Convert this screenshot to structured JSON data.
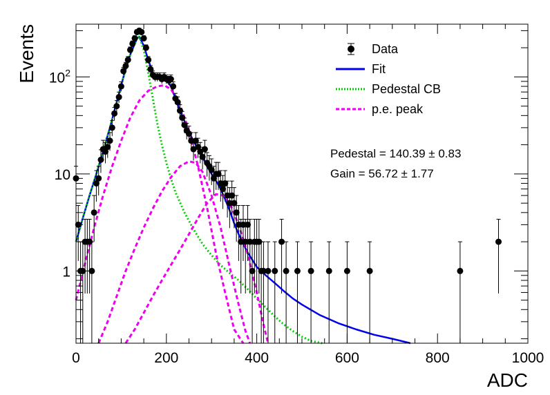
{
  "chart_data": {
    "type": "scatter",
    "title": "",
    "xlabel": "ADC",
    "ylabel": "Events",
    "xlim": [
      0,
      1000
    ],
    "ylim": [
      0.18,
      350
    ],
    "y_scale": "log",
    "x_ticks": [
      "0",
      "200",
      "400",
      "600",
      "800",
      "1000"
    ],
    "y_ticks": [
      {
        "value": 1,
        "label": "1"
      },
      {
        "value": 10,
        "label": "10"
      },
      {
        "value": 100,
        "label": "10^2"
      }
    ],
    "grid": false,
    "legend_position": "top-right",
    "legend": [
      {
        "label": "Data",
        "style": "marker",
        "color": "#000000"
      },
      {
        "label": "Fit",
        "style": "line",
        "color": "#0000ee"
      },
      {
        "label": "Pedestal CB",
        "style": "dotted",
        "color": "#00cc00"
      },
      {
        "label": "p.e. peak",
        "style": "dashed",
        "color": "#ee00ee"
      }
    ],
    "annotations": {
      "pedestal": "Pedestal = 140.39",
      "pedestal_err": "0.83",
      "gain": "Gain = 56.72",
      "gain_err": "1.77"
    },
    "data_points": [
      {
        "x": 0,
        "y": 9
      },
      {
        "x": 5,
        "y": 3
      },
      {
        "x": 10,
        "y": 1
      },
      {
        "x": 15,
        "y": 1
      },
      {
        "x": 20,
        "y": 2
      },
      {
        "x": 25,
        "y": 2
      },
      {
        "x": 30,
        "y": 2
      },
      {
        "x": 35,
        "y": 1
      },
      {
        "x": 40,
        "y": 4
      },
      {
        "x": 45,
        "y": 8
      },
      {
        "x": 50,
        "y": 9
      },
      {
        "x": 55,
        "y": 14
      },
      {
        "x": 60,
        "y": 18
      },
      {
        "x": 65,
        "y": 17
      },
      {
        "x": 70,
        "y": 19
      },
      {
        "x": 75,
        "y": 22
      },
      {
        "x": 80,
        "y": 30
      },
      {
        "x": 85,
        "y": 42
      },
      {
        "x": 90,
        "y": 50
      },
      {
        "x": 95,
        "y": 62
      },
      {
        "x": 100,
        "y": 80
      },
      {
        "x": 105,
        "y": 115
      },
      {
        "x": 110,
        "y": 130
      },
      {
        "x": 115,
        "y": 150
      },
      {
        "x": 120,
        "y": 190
      },
      {
        "x": 125,
        "y": 220
      },
      {
        "x": 130,
        "y": 250
      },
      {
        "x": 135,
        "y": 290
      },
      {
        "x": 140,
        "y": 300
      },
      {
        "x": 145,
        "y": 290
      },
      {
        "x": 150,
        "y": 250
      },
      {
        "x": 155,
        "y": 200
      },
      {
        "x": 160,
        "y": 150
      },
      {
        "x": 165,
        "y": 120
      },
      {
        "x": 170,
        "y": 105
      },
      {
        "x": 175,
        "y": 100
      },
      {
        "x": 180,
        "y": 100
      },
      {
        "x": 185,
        "y": 100
      },
      {
        "x": 190,
        "y": 95
      },
      {
        "x": 195,
        "y": 100
      },
      {
        "x": 200,
        "y": 95
      },
      {
        "x": 205,
        "y": 92
      },
      {
        "x": 210,
        "y": 95
      },
      {
        "x": 215,
        "y": 80
      },
      {
        "x": 220,
        "y": 60
      },
      {
        "x": 225,
        "y": 55
      },
      {
        "x": 230,
        "y": 45
      },
      {
        "x": 235,
        "y": 38
      },
      {
        "x": 240,
        "y": 32
      },
      {
        "x": 245,
        "y": 28
      },
      {
        "x": 250,
        "y": 26
      },
      {
        "x": 255,
        "y": 22
      },
      {
        "x": 260,
        "y": 18
      },
      {
        "x": 265,
        "y": 22
      },
      {
        "x": 270,
        "y": 19
      },
      {
        "x": 275,
        "y": 17
      },
      {
        "x": 280,
        "y": 15
      },
      {
        "x": 285,
        "y": 18
      },
      {
        "x": 290,
        "y": 13
      },
      {
        "x": 295,
        "y": 12
      },
      {
        "x": 300,
        "y": 11
      },
      {
        "x": 305,
        "y": 9
      },
      {
        "x": 310,
        "y": 10
      },
      {
        "x": 315,
        "y": 10
      },
      {
        "x": 320,
        "y": 8
      },
      {
        "x": 325,
        "y": 7
      },
      {
        "x": 330,
        "y": 8
      },
      {
        "x": 335,
        "y": 6
      },
      {
        "x": 340,
        "y": 5
      },
      {
        "x": 345,
        "y": 6
      },
      {
        "x": 350,
        "y": 5
      },
      {
        "x": 355,
        "y": 4
      },
      {
        "x": 360,
        "y": 3
      },
      {
        "x": 365,
        "y": 2
      },
      {
        "x": 370,
        "y": 3
      },
      {
        "x": 375,
        "y": 2
      },
      {
        "x": 380,
        "y": 3
      },
      {
        "x": 385,
        "y": 2
      },
      {
        "x": 390,
        "y": 1
      },
      {
        "x": 395,
        "y": 2
      },
      {
        "x": 400,
        "y": 2
      },
      {
        "x": 405,
        "y": 2
      },
      {
        "x": 410,
        "y": 1
      },
      {
        "x": 415,
        "y": 1
      },
      {
        "x": 425,
        "y": 1
      },
      {
        "x": 440,
        "y": 1
      },
      {
        "x": 455,
        "y": 2
      },
      {
        "x": 465,
        "y": 1
      },
      {
        "x": 490,
        "y": 1
      },
      {
        "x": 520,
        "y": 1
      },
      {
        "x": 560,
        "y": 1
      },
      {
        "x": 600,
        "y": 1
      },
      {
        "x": 650,
        "y": 1
      },
      {
        "x": 850,
        "y": 1
      },
      {
        "x": 935,
        "y": 2
      }
    ],
    "series": [
      {
        "name": "Fit",
        "color": "#0000ee",
        "dash": "none",
        "x": [
          0,
          15,
          30,
          45,
          60,
          75,
          90,
          105,
          120,
          135,
          140,
          150,
          160,
          170,
          180,
          190,
          200,
          210,
          220,
          230,
          240,
          250,
          260,
          270,
          280,
          290,
          300,
          310,
          320,
          330,
          340,
          350,
          360,
          370,
          380,
          400,
          420,
          440,
          460,
          480,
          500,
          540,
          580,
          620,
          660,
          700,
          740
        ],
        "y": [
          2,
          3.5,
          6,
          10,
          17,
          30,
          55,
          100,
          170,
          250,
          260,
          210,
          150,
          110,
          100,
          97,
          94,
          80,
          60,
          45,
          35,
          27,
          22,
          18,
          15,
          12,
          10,
          8.5,
          7,
          5.5,
          4.2,
          3.1,
          2.4,
          1.9,
          1.55,
          1.1,
          0.9,
          0.75,
          0.62,
          0.52,
          0.45,
          0.35,
          0.29,
          0.25,
          0.22,
          0.2,
          0.18
        ]
      },
      {
        "name": "Pedestal CB",
        "color": "#00cc00",
        "dash": "2,3",
        "x": [
          0,
          15,
          30,
          45,
          60,
          75,
          90,
          105,
          120,
          135,
          140,
          150,
          160,
          170,
          180,
          190,
          200,
          210,
          220,
          240,
          260,
          280,
          300,
          320,
          340,
          360,
          380,
          400,
          420,
          440,
          460,
          480,
          500,
          520,
          545
        ],
        "y": [
          2,
          3.5,
          6,
          10,
          17,
          30,
          55,
          100,
          170,
          250,
          260,
          190,
          110,
          60,
          33,
          20,
          13,
          9,
          6.5,
          4,
          2.7,
          1.9,
          1.45,
          1.15,
          0.95,
          0.8,
          0.65,
          0.52,
          0.42,
          0.34,
          0.28,
          0.24,
          0.21,
          0.19,
          0.18
        ]
      },
      {
        "name": "p.e. peak 1",
        "color": "#ee00ee",
        "dash": "6,4",
        "x": [
          0,
          20,
          40,
          60,
          80,
          100,
          120,
          140,
          160,
          180,
          195,
          210,
          230,
          250,
          270,
          290,
          310,
          330,
          350,
          370
        ],
        "y": [
          0.5,
          1.2,
          2.8,
          6,
          12,
          22,
          38,
          57,
          72,
          80,
          82,
          75,
          52,
          28,
          12,
          4.5,
          1.5,
          0.6,
          0.25,
          0.18
        ]
      },
      {
        "name": "p.e. peak 2",
        "color": "#ee00ee",
        "dash": "6,4",
        "x": [
          50,
          70,
          90,
          110,
          130,
          150,
          170,
          190,
          210,
          230,
          250,
          265,
          280,
          300,
          320,
          340,
          360,
          375,
          385
        ],
        "y": [
          0.18,
          0.3,
          0.55,
          1.0,
          1.7,
          2.8,
          4.4,
          6.6,
          9.2,
          12,
          13.5,
          13,
          10.5,
          6,
          2.8,
          1.1,
          0.45,
          0.24,
          0.18
        ]
      },
      {
        "name": "p.e. peak 3",
        "color": "#ee00ee",
        "dash": "6,4",
        "x": [
          110,
          130,
          150,
          170,
          190,
          210,
          230,
          250,
          270,
          290,
          310,
          325,
          340,
          360,
          380,
          400,
          415,
          425
        ],
        "y": [
          0.18,
          0.25,
          0.37,
          0.55,
          0.8,
          1.15,
          1.65,
          2.4,
          3.5,
          5,
          6.2,
          6,
          5,
          3,
          1.5,
          0.6,
          0.28,
          0.18
        ]
      }
    ]
  }
}
